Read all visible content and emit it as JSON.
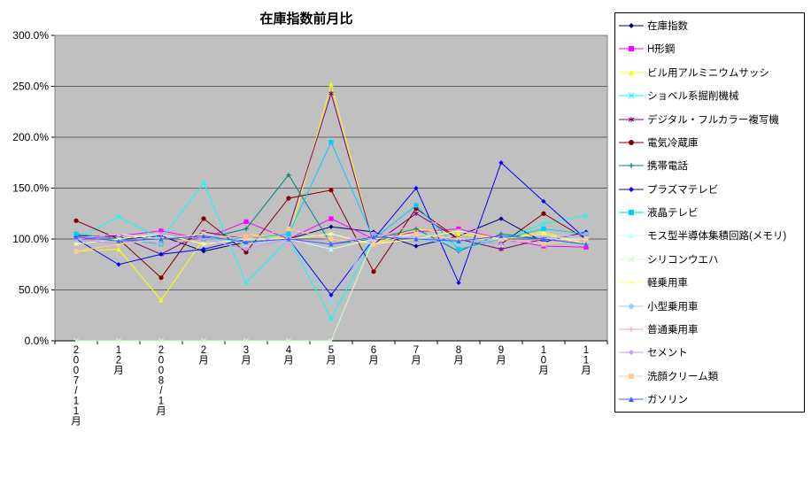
{
  "chart_data": {
    "type": "line",
    "title": "在庫指数前月比",
    "plot_bg": "#c0c0c0",
    "legend_position": "right",
    "ylim": [
      0,
      300
    ],
    "y_ticks": [
      "0.0%",
      "50.0%",
      "100.0%",
      "150.0%",
      "200.0%",
      "250.0%",
      "300.0%"
    ],
    "categories": [
      "2007/11月",
      "12月",
      "2008/1月",
      "2月",
      "3月",
      "4月",
      "5月",
      "6月",
      "7月",
      "8月",
      "9月",
      "10月",
      "11月"
    ],
    "series": [
      {
        "name": "在庫指数",
        "color": "#000080",
        "marker": "diamond",
        "values": [
          105,
          100,
          103,
          88,
          97,
          100,
          112,
          107,
          93,
          103,
          120,
          97,
          107
        ]
      },
      {
        "name": "H形鋼",
        "color": "#ff00ff",
        "marker": "square",
        "values": [
          100,
          103,
          108,
          100,
          117,
          100,
          120,
          100,
          107,
          110,
          100,
          93,
          92
        ]
      },
      {
        "name": "ビル用アルミニウムサッシ",
        "color": "#ffff00",
        "marker": "triangle",
        "values": [
          88,
          90,
          40,
          100,
          105,
          100,
          252,
          95,
          110,
          105,
          100,
          107,
          95
        ]
      },
      {
        "name": "ショベル系掘削機械",
        "color": "#00ffff",
        "marker": "x",
        "values": [
          100,
          122,
          100,
          155,
          57,
          100,
          22,
          100,
          105,
          95,
          100,
          115,
          123
        ]
      },
      {
        "name": "デジタル・フルカラー複写機",
        "color": "#800080",
        "marker": "asterisk",
        "values": [
          103,
          103,
          85,
          107,
          100,
          110,
          243,
          95,
          125,
          100,
          90,
          100,
          100
        ]
      },
      {
        "name": "電気冷蔵庫",
        "color": "#800000",
        "marker": "circle",
        "values": [
          118,
          100,
          62,
          120,
          87,
          140,
          148,
          68,
          130,
          100,
          95,
          125,
          100
        ]
      },
      {
        "name": "携帯電話",
        "color": "#008080",
        "marker": "plus",
        "values": [
          100,
          95,
          105,
          100,
          110,
          163,
          95,
          100,
          110,
          88,
          105,
          100,
          95
        ]
      },
      {
        "name": "プラズマテレビ",
        "color": "#0000ff",
        "marker": "diamond",
        "values": [
          100,
          75,
          85,
          90,
          100,
          100,
          45,
          100,
          150,
          57,
          175,
          137,
          100
        ]
      },
      {
        "name": "液晶テレビ",
        "color": "#00ccff",
        "marker": "square",
        "values": [
          105,
          100,
          95,
          100,
          100,
          105,
          195,
          100,
          133,
          90,
          100,
          110,
          105
        ]
      },
      {
        "name": "モス型半導体集積回路(メモリ)",
        "color": "#ccffff",
        "marker": "triangle",
        "values": [
          100,
          105,
          100,
          105,
          95,
          100,
          90,
          100,
          105,
          100,
          95,
          100,
          100
        ]
      },
      {
        "name": "シリコンウエハ",
        "color": "#ccffcc",
        "marker": "x",
        "values": [
          0,
          0,
          0,
          0,
          0,
          0,
          0,
          100,
          105,
          100,
          100,
          95,
          100
        ]
      },
      {
        "name": "軽乗用車",
        "color": "#ffff99",
        "marker": "asterisk",
        "values": [
          95,
          100,
          105,
          95,
          100,
          100,
          105,
          95,
          100,
          108,
          100,
          105,
          95
        ]
      },
      {
        "name": "小型乗用車",
        "color": "#99ccff",
        "marker": "circle",
        "values": [
          100,
          95,
          100,
          105,
          95,
          100,
          38,
          105,
          100,
          95,
          100,
          95,
          100
        ]
      },
      {
        "name": "普通乗用車",
        "color": "#ff99cc",
        "marker": "plus",
        "values": [
          100,
          105,
          95,
          100,
          105,
          95,
          100,
          100,
          115,
          117,
          100,
          95,
          100
        ]
      },
      {
        "name": "セメント",
        "color": "#cc99ff",
        "marker": "diamond",
        "values": [
          100,
          95,
          105,
          100,
          90,
          100,
          95,
          105,
          100,
          100,
          95,
          100,
          105
        ]
      },
      {
        "name": "洗顔クリーム類",
        "color": "#ffcc99",
        "marker": "square",
        "values": [
          88,
          95,
          100,
          105,
          100,
          110,
          100,
          95,
          105,
          100,
          100,
          95,
          100
        ]
      },
      {
        "name": "ガソリン",
        "color": "#3366ff",
        "marker": "triangle",
        "values": [
          102,
          98,
          100,
          103,
          97,
          100,
          95,
          102,
          100,
          98,
          103,
          100,
          95
        ]
      }
    ]
  }
}
